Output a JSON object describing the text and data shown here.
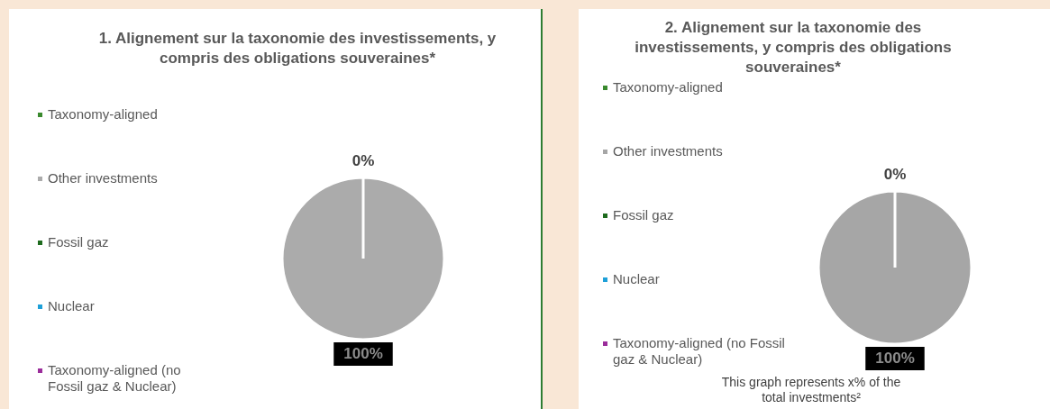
{
  "chart_data": [
    {
      "type": "pie",
      "title": "1. Alignement sur la taxonomie des investissements, y compris des obligations souveraines*",
      "categories": [
        "Taxonomy-aligned",
        "Other investments",
        "Fossil gaz",
        "Nuclear",
        "Taxonomy-aligned (no Fossil gaz & Nuclear)"
      ],
      "values": [
        0,
        100,
        0,
        0,
        0
      ],
      "colors": [
        "#3a8a2e",
        "#ababab",
        "#1e6b1e",
        "#1ea0d8",
        "#9b2d9b"
      ],
      "value_labels": [
        "0%",
        "100%",
        null,
        null,
        null
      ],
      "legend": "left"
    },
    {
      "type": "pie",
      "title": "2. Alignement sur la taxonomie des investissements, y compris des obligations souveraines*",
      "categories": [
        "Taxonomy-aligned",
        "Other investments",
        "Fossil gaz",
        "Nuclear",
        "Taxonomy-aligned (no Fossil gaz & Nuclear)"
      ],
      "values": [
        0,
        100,
        0,
        0,
        0
      ],
      "colors": [
        "#3a8a2e",
        "#a6a6a6",
        "#1e6b1e",
        "#1ea0d8",
        "#9b2d9b"
      ],
      "value_labels": [
        "0%",
        "100%",
        null,
        null,
        null
      ],
      "legend": "left",
      "annotations": [
        "This graph represents x% of the total investments²"
      ]
    }
  ]
}
